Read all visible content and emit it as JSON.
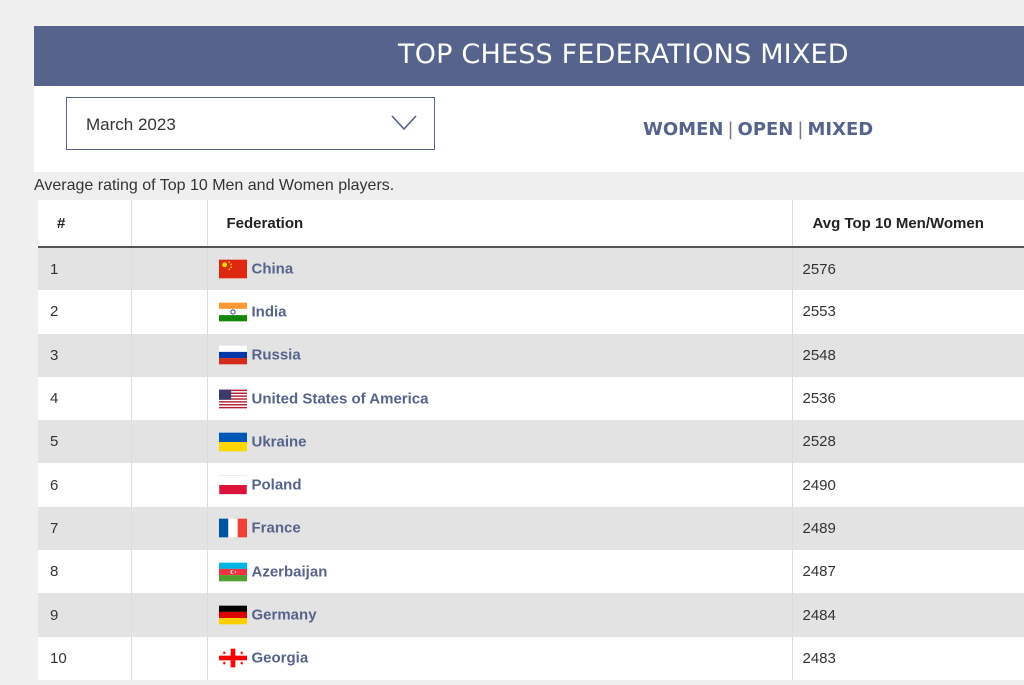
{
  "header": {
    "title": "TOP CHESS FEDERATIONS MIXED"
  },
  "filter": {
    "selected_period": "March 2023",
    "icon": "chevron-down-icon"
  },
  "nav": {
    "women": "WOMEN",
    "open": "OPEN",
    "mixed": "MIXED",
    "separator": "|"
  },
  "caption": "Average rating of Top 10 Men and Women players.",
  "colors": {
    "banner": "#56638c",
    "link": "#56638c",
    "row_stripe": "#e3e3e3"
  },
  "table": {
    "columns": {
      "rank": "#",
      "blank": "",
      "federation": "Federation",
      "avg": "Avg Top 10 Men/Women"
    },
    "rows": [
      {
        "rank": "1",
        "federation": "China",
        "flag": "china-flag-icon",
        "avg": "2576"
      },
      {
        "rank": "2",
        "federation": "India",
        "flag": "india-flag-icon",
        "avg": "2553"
      },
      {
        "rank": "3",
        "federation": "Russia",
        "flag": "russia-flag-icon",
        "avg": "2548"
      },
      {
        "rank": "4",
        "federation": "United States of America",
        "flag": "usa-flag-icon",
        "avg": "2536"
      },
      {
        "rank": "5",
        "federation": "Ukraine",
        "flag": "ukraine-flag-icon",
        "avg": "2528"
      },
      {
        "rank": "6",
        "federation": "Poland",
        "flag": "poland-flag-icon",
        "avg": "2490"
      },
      {
        "rank": "7",
        "federation": "France",
        "flag": "france-flag-icon",
        "avg": "2489"
      },
      {
        "rank": "8",
        "federation": "Azerbaijan",
        "flag": "azerbaijan-flag-icon",
        "avg": "2487"
      },
      {
        "rank": "9",
        "federation": "Germany",
        "flag": "germany-flag-icon",
        "avg": "2484"
      },
      {
        "rank": "10",
        "federation": "Georgia",
        "flag": "georgia-flag-icon",
        "avg": "2483"
      }
    ]
  }
}
